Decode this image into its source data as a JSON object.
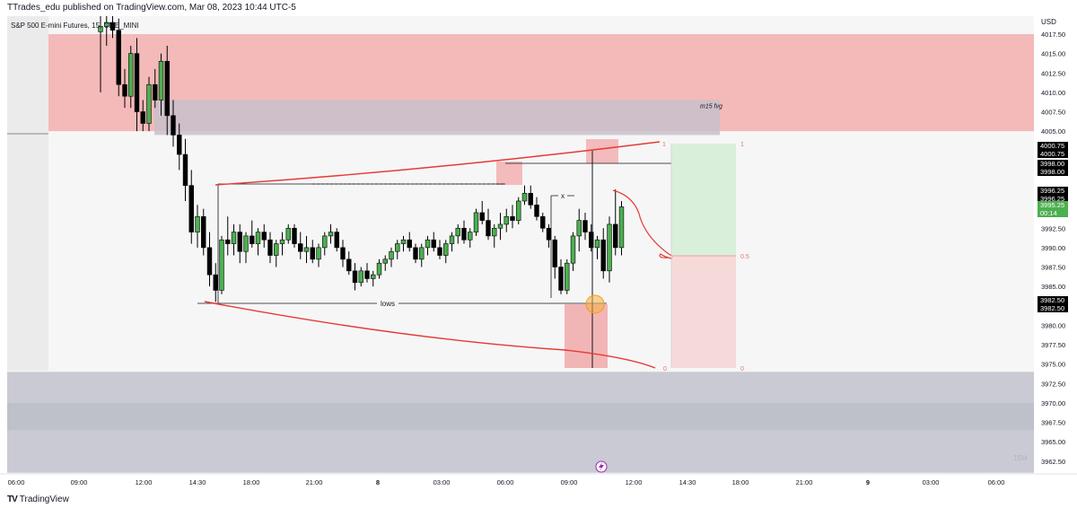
{
  "header": {
    "published": "TTrades_edu published on TradingView.com, Mar 08, 2023 10:44 UTC-5",
    "symbol": "S&P 500 E-mini Futures, 15, CME_MINI"
  },
  "footer": {
    "brand": "TradingView"
  },
  "watermark": "15M",
  "chart_data": {
    "type": "candlestick",
    "currency": "USD",
    "timeframe": "15",
    "ylim": [
      3960,
      4020
    ],
    "y_ticks": [
      4017.5,
      4015,
      4012.5,
      4010,
      4007.5,
      4005,
      4000.75,
      3998,
      3996.25,
      3995.25,
      3992.5,
      3990,
      3987.5,
      3985,
      3982.5,
      3980,
      3977.5,
      3975,
      3972.5,
      3970,
      3967.5,
      3965,
      3962.5
    ],
    "y_tick_labels": [
      "4017.50",
      "4015.00",
      "4012.50",
      "4010.00",
      "4007.50",
      "4005.00",
      "4000.75",
      "3998.00",
      "3996.25",
      "3995.25",
      "3992.50",
      "3990.00",
      "3987.50",
      "3985.00",
      "3982.50",
      "3980.00",
      "3977.50",
      "3975.00",
      "3972.50",
      "3970.00",
      "3967.50",
      "3965.00",
      "3962.50"
    ],
    "x_tick_labels": [
      "06:00",
      "09:00",
      "12:00",
      "14:30",
      "18:00",
      "21:00",
      "8",
      "03:00",
      "06:00",
      "09:00",
      "12:00",
      "14:30",
      "18:00",
      "21:00",
      "9",
      "03:00",
      "06:00"
    ],
    "price_tags": [
      {
        "label": "4000.75",
        "price": 4000.75,
        "style": "black"
      },
      {
        "label": "4000.75",
        "price": 4000.75,
        "style": "black"
      },
      {
        "label": "3998.00",
        "price": 3998.0,
        "style": "black"
      },
      {
        "label": "3998.00",
        "price": 3998.0,
        "style": "black"
      },
      {
        "label": "3996.25",
        "price": 3996.25,
        "style": "black"
      },
      {
        "label": "3996.25",
        "price": 3996.25,
        "style": "black"
      },
      {
        "label": "3995.25",
        "price": 3995.25,
        "style": "green"
      },
      {
        "label": "00:14",
        "price": 3995.25,
        "style": "green"
      },
      {
        "label": "3982.50",
        "price": 3982.5,
        "style": "black"
      },
      {
        "label": "3982.50",
        "price": 3982.5,
        "style": "black"
      }
    ],
    "candles": [
      [
        4017.8,
        4020.5,
        4010.0,
        4018.5
      ],
      [
        4018.5,
        4020.0,
        4016.0,
        4019.0
      ],
      [
        4019.0,
        4020.8,
        4017.0,
        4018.0
      ],
      [
        4018.0,
        4019.5,
        4009.5,
        4011.0
      ],
      [
        4011.0,
        4013.0,
        4008.0,
        4009.5
      ],
      [
        4009.5,
        4016.0,
        4008.0,
        4015.0
      ],
      [
        4015.0,
        4017.0,
        4005.0,
        4007.5
      ],
      [
        4007.5,
        4009.0,
        4005.0,
        4006.0
      ],
      [
        4006.0,
        4012.0,
        4005.0,
        4011.0
      ],
      [
        4011.0,
        4013.0,
        4008.0,
        4009.0
      ],
      [
        4009.0,
        4015.0,
        4007.0,
        4014.0
      ],
      [
        4014.0,
        4016.0,
        4004.5,
        4007.0
      ],
      [
        4007.0,
        4009.0,
        4003.0,
        4004.5
      ],
      [
        4004.5,
        4006.0,
        4000.0,
        4002.0
      ],
      [
        4002.0,
        4004.0,
        3996.0,
        3998.0
      ],
      [
        3998.0,
        4000.0,
        3990.5,
        3992.0
      ],
      [
        3992.0,
        3995.5,
        3990.0,
        3994.0
      ],
      [
        3994.0,
        3995.0,
        3989.0,
        3990.0
      ],
      [
        3990.0,
        3992.0,
        3985.0,
        3986.5
      ],
      [
        3986.5,
        3988.0,
        3983.0,
        3984.5
      ],
      [
        3984.5,
        3991.5,
        3984.0,
        3991.0
      ],
      [
        3991.0,
        3994.0,
        3989.0,
        3990.5
      ],
      [
        3990.5,
        3993.0,
        3989.0,
        3992.0
      ],
      [
        3992.0,
        3993.0,
        3988.0,
        3989.5
      ],
      [
        3989.5,
        3992.0,
        3988.0,
        3991.5
      ],
      [
        3991.5,
        3993.5,
        3990.0,
        3990.5
      ],
      [
        3990.5,
        3992.5,
        3989.0,
        3992.0
      ],
      [
        3992.0,
        3993.0,
        3990.0,
        3991.0
      ],
      [
        3991.0,
        3992.0,
        3988.0,
        3989.0
      ],
      [
        3989.0,
        3991.0,
        3987.5,
        3990.5
      ],
      [
        3990.5,
        3992.0,
        3989.0,
        3991.0
      ],
      [
        3991.0,
        3993.0,
        3990.5,
        3992.5
      ],
      [
        3992.5,
        3993.0,
        3990.0,
        3990.5
      ],
      [
        3990.5,
        3992.0,
        3988.5,
        3989.5
      ],
      [
        3989.5,
        3991.5,
        3988.0,
        3990.0
      ],
      [
        3990.0,
        3991.0,
        3988.0,
        3988.5
      ],
      [
        3988.5,
        3990.5,
        3987.5,
        3990.0
      ],
      [
        3990.0,
        3992.0,
        3989.0,
        3991.5
      ],
      [
        3991.5,
        3993.0,
        3990.5,
        3992.0
      ],
      [
        3992.0,
        3992.5,
        3989.5,
        3990.0
      ],
      [
        3990.0,
        3991.0,
        3987.5,
        3988.5
      ],
      [
        3988.5,
        3989.5,
        3986.5,
        3987.0
      ],
      [
        3987.0,
        3988.0,
        3984.5,
        3985.5
      ],
      [
        3985.5,
        3987.5,
        3985.0,
        3987.0
      ],
      [
        3987.0,
        3988.0,
        3985.5,
        3986.0
      ],
      [
        3986.0,
        3987.0,
        3985.0,
        3986.5
      ],
      [
        3986.5,
        3988.5,
        3986.0,
        3988.0
      ],
      [
        3988.0,
        3989.0,
        3987.0,
        3988.5
      ],
      [
        3988.5,
        3990.0,
        3987.5,
        3989.5
      ],
      [
        3989.5,
        3991.0,
        3988.5,
        3990.5
      ],
      [
        3990.5,
        3991.5,
        3989.5,
        3991.0
      ],
      [
        3991.0,
        3992.0,
        3989.5,
        3990.0
      ],
      [
        3990.0,
        3990.5,
        3988.0,
        3988.5
      ],
      [
        3988.5,
        3990.5,
        3987.5,
        3990.0
      ],
      [
        3990.0,
        3991.5,
        3989.0,
        3991.0
      ],
      [
        3991.0,
        3992.0,
        3989.5,
        3990.0
      ],
      [
        3990.0,
        3991.0,
        3988.5,
        3989.0
      ],
      [
        3989.0,
        3991.0,
        3988.0,
        3990.5
      ],
      [
        3990.5,
        3992.0,
        3989.5,
        3991.5
      ],
      [
        3991.5,
        3993.0,
        3990.5,
        3992.5
      ],
      [
        3992.5,
        3993.5,
        3990.5,
        3991.0
      ],
      [
        3991.0,
        3992.5,
        3990.0,
        3992.0
      ],
      [
        3992.0,
        3995.0,
        3991.5,
        3994.5
      ],
      [
        3994.5,
        3996.0,
        3993.0,
        3993.5
      ],
      [
        3993.5,
        3995.0,
        3991.0,
        3991.5
      ],
      [
        3991.5,
        3993.0,
        3990.0,
        3992.5
      ],
      [
        3992.5,
        3994.5,
        3991.0,
        3993.0
      ],
      [
        3993.0,
        3995.0,
        3992.0,
        3994.0
      ],
      [
        3994.0,
        3995.5,
        3992.5,
        3993.5
      ],
      [
        3993.5,
        3996.5,
        3993.0,
        3996.0
      ],
      [
        3996.0,
        3998.0,
        3995.5,
        3997.0
      ],
      [
        3997.0,
        3998.0,
        3995.0,
        3995.5
      ],
      [
        3995.5,
        3996.5,
        3993.5,
        3994.0
      ],
      [
        3994.0,
        3994.5,
        3992.0,
        3992.5
      ],
      [
        3992.5,
        3993.0,
        3990.0,
        3991.0
      ],
      [
        3991.0,
        3991.5,
        3986.0,
        3987.5
      ],
      [
        3987.5,
        3988.5,
        3984.0,
        3984.5
      ],
      [
        3984.5,
        3988.5,
        3984.0,
        3988.0
      ],
      [
        3988.0,
        3992.0,
        3987.0,
        3991.5
      ],
      [
        3991.5,
        3995.0,
        3989.5,
        3993.5
      ],
      [
        3993.5,
        3994.5,
        3991.0,
        3992.0
      ],
      [
        3992.0,
        3993.0,
        3989.5,
        3990.0
      ],
      [
        3990.0,
        3991.5,
        3988.5,
        3991.0
      ],
      [
        3991.0,
        3992.5,
        3986.0,
        3987.0
      ],
      [
        3987.0,
        3994.0,
        3985.5,
        3993.0
      ],
      [
        3993.0,
        3997.5,
        3989.0,
        3990.0
      ],
      [
        3990.0,
        3996.0,
        3989.0,
        3995.25
      ]
    ],
    "zones": [
      {
        "name": "supply-zone",
        "from": 4005.0,
        "to": 4017.5,
        "color": "#f4b9b9"
      },
      {
        "name": "m15-fvg",
        "label": "m15 fvg",
        "from": 4004.5,
        "to": 4009.0,
        "color": "#c8bfcb"
      },
      {
        "name": "lower-zone",
        "from": 3961.0,
        "to": 3974.0,
        "color": "#c9cad3"
      }
    ],
    "annotations": [
      "lows",
      "x",
      "1",
      "1",
      "0.5",
      "0.5",
      "0",
      "0"
    ],
    "colors": {
      "up": "#4caf50",
      "down": "#000000",
      "grid": "#f0f3fa",
      "drawing": "#e53935"
    }
  }
}
